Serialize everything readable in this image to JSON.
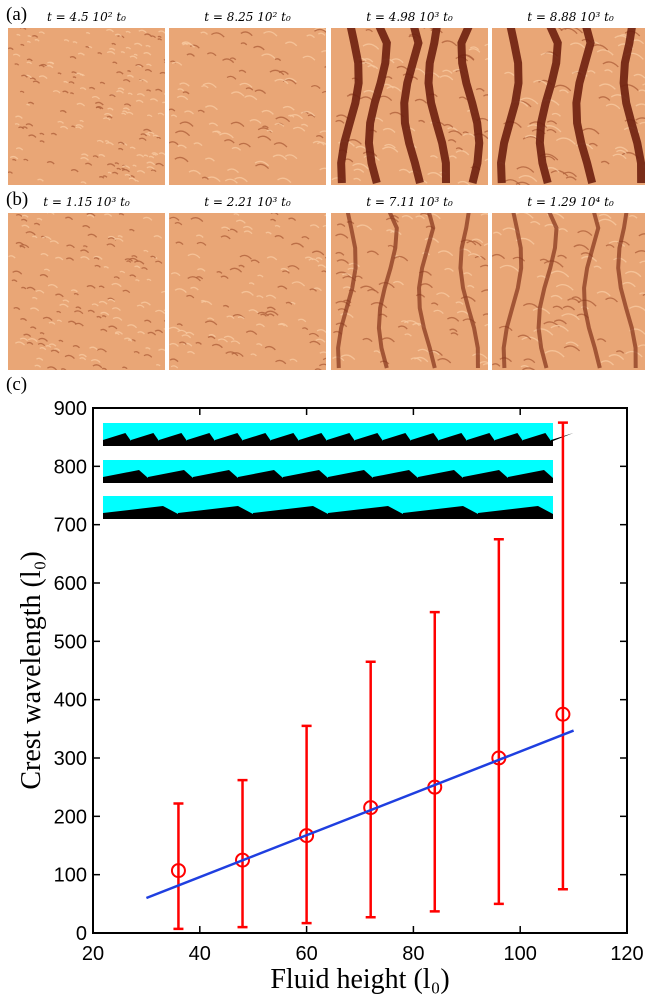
{
  "panel_labels": [
    "(a)",
    "(b)",
    "(c)"
  ],
  "snapshots": [
    [
      "t = 4.5 10² t₀",
      "t = 8.25 10² t₀",
      "t = 4.98 10³ t₀",
      "t = 8.88 10³ t₀"
    ],
    [
      "t = 1.15 10³ t₀",
      "t = 2.21 10³ t₀",
      "t = 7.11 10³ t₀",
      "t = 1.29 10⁴ t₀"
    ]
  ],
  "chart_data": {
    "type": "scatter",
    "x_label": "Fluid height (l₀)",
    "y_label": "Crest wavelength (l₀)",
    "xlim": [
      20,
      120
    ],
    "xticks": [
      20,
      40,
      60,
      80,
      100,
      120
    ],
    "ylim": [
      0,
      900
    ],
    "yticks": [
      0,
      100,
      200,
      300,
      400,
      500,
      600,
      700,
      800,
      900
    ],
    "series": [
      {
        "x": [
          36,
          48,
          60,
          72,
          84,
          96,
          108
        ],
        "values": [
          107,
          125,
          167,
          215,
          250,
          300,
          375
        ],
        "error_low": [
          7,
          10,
          17,
          27,
          37,
          50,
          75
        ],
        "error_high": [
          222,
          262,
          355,
          465,
          550,
          675,
          875
        ],
        "color": "#ff0000",
        "marker": "open-circle"
      },
      {
        "x": [
          30,
          110
        ],
        "values": [
          60,
          347
        ],
        "color": "#1f3fe0",
        "marker": "line"
      }
    ]
  }
}
